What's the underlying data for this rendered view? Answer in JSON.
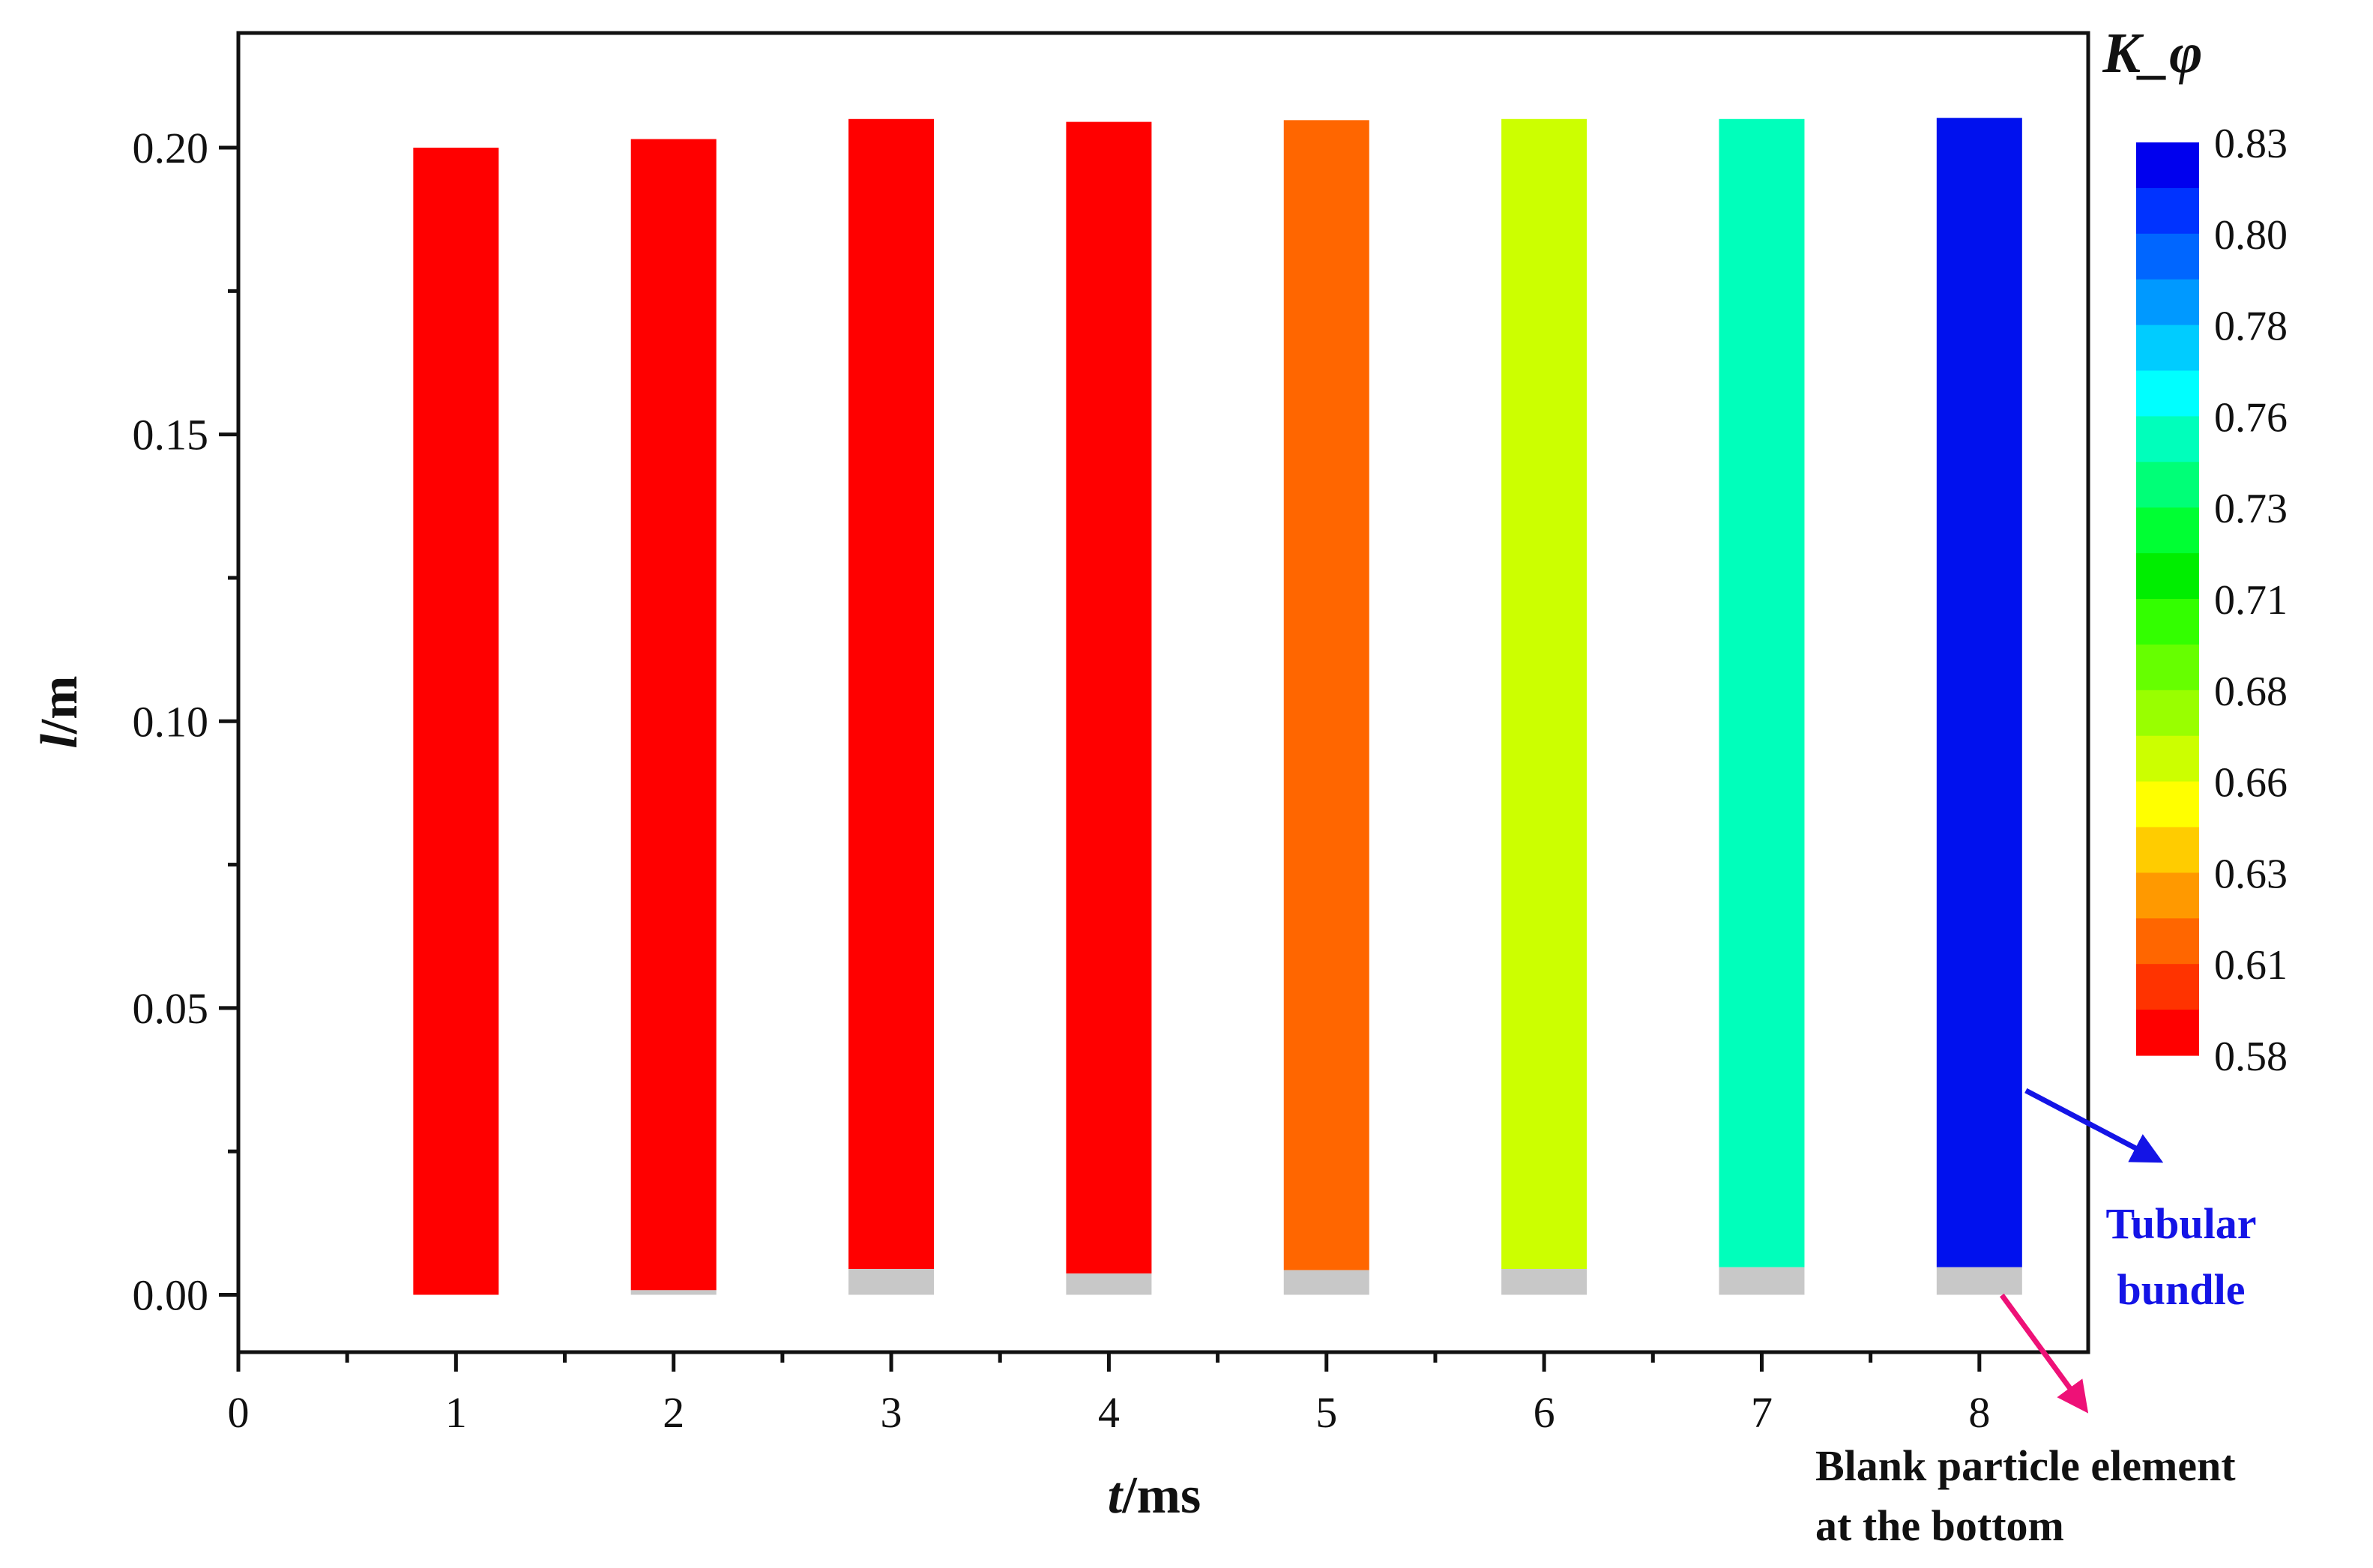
{
  "chart_data": {
    "type": "bar",
    "xlabel_italic": "t",
    "xlabel_unit": "/ms",
    "ylabel_italic": "l",
    "ylabel_unit": "/m",
    "xlim": [
      0,
      8.5
    ],
    "ylim": [
      -0.01,
      0.22
    ],
    "x_ticks": [
      "0",
      "1",
      "2",
      "3",
      "4",
      "5",
      "6",
      "7",
      "8"
    ],
    "y_ticks": [
      "0.00",
      "0.05",
      "0.10",
      "0.15",
      "0.20"
    ],
    "grid": false,
    "bars": [
      {
        "t": 1,
        "bottom": 0.0,
        "top": 0.2,
        "color": "#ff0000"
      },
      {
        "t": 2,
        "bottom": 0.0008,
        "top": 0.2015,
        "color": "#ff0000"
      },
      {
        "t": 3,
        "bottom": 0.0045,
        "top": 0.205,
        "color": "#ff0000"
      },
      {
        "t": 4,
        "bottom": 0.0037,
        "top": 0.2045,
        "color": "#ff0000"
      },
      {
        "t": 5,
        "bottom": 0.0043,
        "top": 0.2048,
        "color": "#ff6600"
      },
      {
        "t": 6,
        "bottom": 0.0045,
        "top": 0.205,
        "color": "#ccff00"
      },
      {
        "t": 7,
        "bottom": 0.0048,
        "top": 0.205,
        "color": "#00ffbb"
      },
      {
        "t": 8,
        "bottom": 0.0048,
        "top": 0.2052,
        "color": "#0011ee"
      }
    ],
    "blank_color": "#c8c8c8",
    "colorbar": {
      "title": "K_φ",
      "labels": [
        "0.83",
        "0.80",
        "0.78",
        "0.76",
        "0.73",
        "0.71",
        "0.68",
        "0.66",
        "0.63",
        "0.61",
        "0.58"
      ],
      "colors": [
        "#0000ee",
        "#0033ff",
        "#0066ff",
        "#0099ff",
        "#00ccff",
        "#00ffff",
        "#00ffbb",
        "#00ff77",
        "#00ff33",
        "#00ee00",
        "#33ff00",
        "#66ff00",
        "#99ff00",
        "#ccff00",
        "#ffff00",
        "#ffcc00",
        "#ff9900",
        "#ff6600",
        "#ff3300",
        "#ff0000"
      ]
    },
    "annotations": {
      "tubular": [
        "Tubular",
        "bundle"
      ],
      "blank": [
        "Blank particle element",
        "at the bottom"
      ]
    }
  }
}
